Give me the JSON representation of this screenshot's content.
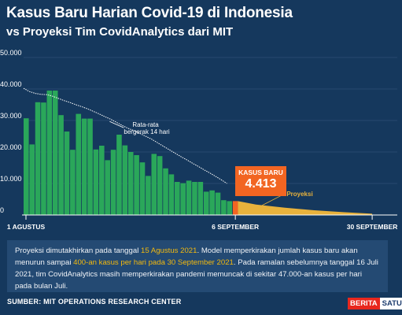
{
  "header": {
    "title": "Kasus Baru Harian Covid-19 di Indonesia",
    "subtitle": "vs Proyeksi Tim CovidAnalytics dari MIT"
  },
  "chart_data": {
    "type": "bar",
    "ylim": [
      0,
      50000
    ],
    "yticks": [
      0,
      10000,
      20000,
      30000,
      40000,
      50000
    ],
    "ytick_labels": [
      "0",
      "10.000",
      "20.000",
      "30.000",
      "40.000",
      "50.000"
    ],
    "x_labels": [
      "1 AGUSTUS",
      "6 SEPTEMBER",
      "30 SEPTEMBER"
    ],
    "x_label_days": [
      0,
      36,
      60
    ],
    "bars_start_label": "1 AGUSTUS",
    "daily_cases": [
      30700,
      22400,
      35800,
      35700,
      39500,
      39500,
      31700,
      26500,
      20700,
      32100,
      30600,
      30600,
      20800,
      22000,
      17400,
      20700,
      25500,
      22100,
      20000,
      19000,
      16700,
      12400,
      19400,
      18700,
      14800,
      12900,
      10500,
      10100,
      10900,
      10500,
      10500,
      7400,
      7800,
      7100,
      4700,
      4400
    ],
    "last_bar_day": 36,
    "last_bar_value": 4413,
    "moving_average_label": "Rata-rata bergerak 14 hari",
    "moving_average": [
      40200,
      39200,
      38600,
      38300,
      38200,
      37700,
      37000,
      36300,
      35700,
      35000,
      34400,
      33700,
      32900,
      32100,
      31200,
      30400,
      29400,
      28400,
      27500,
      26800,
      25900,
      25000,
      24100,
      23000,
      21900,
      20800,
      19700,
      18600,
      17600,
      16500,
      15500,
      14400,
      13400,
      12300,
      11200,
      10000
    ],
    "projection_label": "Proyeksi",
    "projection": [
      {
        "day": 36,
        "value": 4413
      },
      {
        "day": 40,
        "value": 3300
      },
      {
        "day": 45,
        "value": 2300
      },
      {
        "day": 50,
        "value": 1500
      },
      {
        "day": 55,
        "value": 900
      },
      {
        "day": 60,
        "value": 400
      }
    ],
    "callout_label": "KASUS BARU",
    "callout_value": "4.413",
    "colors": {
      "bars": "#2aa75a",
      "last_bar": "#f26522",
      "projection": "#e8b23c",
      "moving_average": "#ffffff",
      "background": "#15385d"
    }
  },
  "note": {
    "p1": "Proyeksi dimutakhirkan pada tanggal ",
    "h1": "15 Agustus 2021",
    "p2": ". Model memperkirakan jumlah kasus baru akan menurun sampai ",
    "h2": " 400-an kasus per hari pada 30 September 2021",
    "p3": ". Pada ramalan sebelumnya tanggal 16 Juli 2021, tim CovidAnalytics masih memperkirakan pandemi memuncak di sekitar 47.000-an kasus per hari pada bulan Juli."
  },
  "footer": {
    "source": "SUMBER: MIT OPERATIONS RESEARCH CENTER",
    "brand_a": "BERITA",
    "brand_b": "SATU"
  }
}
